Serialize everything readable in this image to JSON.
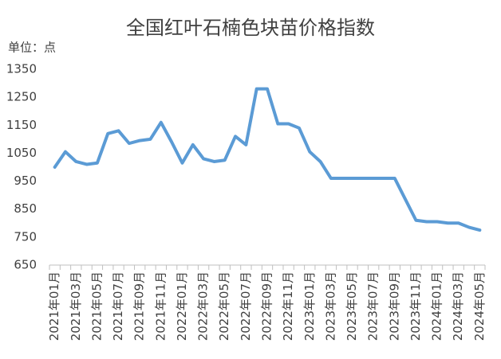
{
  "chart_data": {
    "type": "line",
    "title": "全国红叶石楠色块苗价格指数",
    "y_label": "单位：点",
    "categories": [
      "2021年01月",
      null,
      "2021年03月",
      null,
      "2021年05月",
      null,
      "2021年07月",
      null,
      "2021年09月",
      null,
      "2021年11月",
      null,
      "2022年01月",
      null,
      "2022年03月",
      null,
      "2022年05月",
      null,
      "2022年07月",
      null,
      "2022年09月",
      null,
      "2022年11月",
      null,
      "2023年01月",
      null,
      "2023年03月",
      null,
      "2023年05月",
      null,
      "2023年07月",
      null,
      "2023年09月",
      null,
      "2023年11月",
      null,
      "2024年01月",
      null,
      "2024年03月",
      null,
      "2024年05月"
    ],
    "values": [
      1000,
      1055,
      1020,
      1010,
      1015,
      1120,
      1130,
      1085,
      1095,
      1100,
      1160,
      1090,
      1015,
      1080,
      1030,
      1020,
      1025,
      1110,
      1080,
      1280,
      1280,
      1155,
      1155,
      1140,
      1055,
      1020,
      960,
      960,
      960,
      960,
      960,
      960,
      960,
      885,
      810,
      805,
      805,
      800,
      800,
      785,
      775
    ],
    "color": "#5b9bd5",
    "ylim": [
      650,
      1350
    ],
    "yticks": [
      650,
      750,
      850,
      950,
      1050,
      1150,
      1250,
      1350
    ],
    "grid": false
  }
}
